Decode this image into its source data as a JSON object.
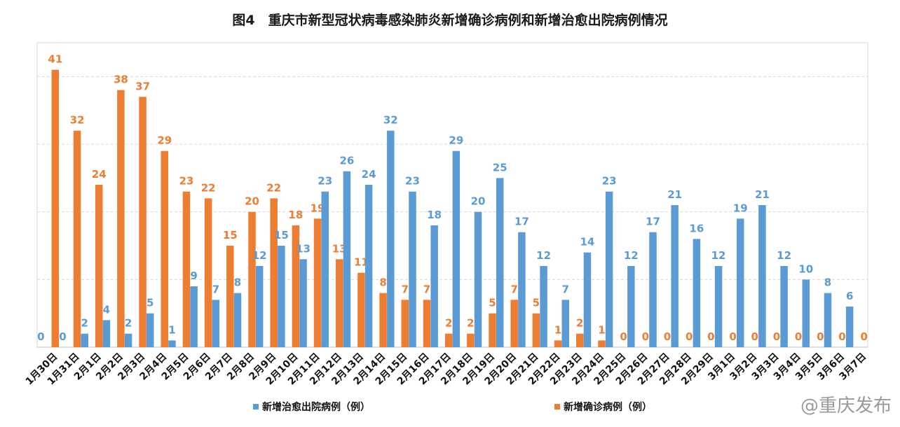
{
  "chart_data": {
    "type": "bar",
    "title": "图4　重庆市新型冠状病毒感染肺炎新增确诊病例和新增治愈出院病例情况",
    "categories": [
      "1月30日",
      "1月31日",
      "2月1日",
      "2月2日",
      "2月3日",
      "2月4日",
      "2月5日",
      "2月6日",
      "2月7日",
      "2月8日",
      "2月9日",
      "2月10日",
      "2月11日",
      "2月12日",
      "2月13日",
      "2月14日",
      "2月15日",
      "2月16日",
      "2月17日",
      "2月18日",
      "2月19日",
      "2月20日",
      "2月21日",
      "2月22日",
      "2月23日",
      "2月24日",
      "2月25日",
      "2月26日",
      "2月27日",
      "2月28日",
      "2月29日",
      "3月1日",
      "3月2日",
      "3月3日",
      "3月4日",
      "3月5日",
      "3月6日",
      "3月7日"
    ],
    "series": [
      {
        "name": "新增治愈出院病例（例）",
        "color": "#5b9bd5",
        "values": [
          0,
          0,
          2,
          4,
          2,
          5,
          1,
          9,
          7,
          8,
          12,
          15,
          13,
          23,
          26,
          24,
          32,
          23,
          18,
          29,
          20,
          25,
          17,
          12,
          7,
          14,
          23,
          12,
          17,
          21,
          16,
          12,
          19,
          21,
          12,
          10,
          8,
          6
        ]
      },
      {
        "name": "新增确诊病例（例）",
        "color": "#ed7d31",
        "values": [
          41,
          32,
          24,
          38,
          37,
          29,
          23,
          22,
          15,
          20,
          22,
          18,
          19,
          13,
          11,
          8,
          7,
          7,
          2,
          2,
          5,
          7,
          5,
          1,
          2,
          1,
          0,
          0,
          0,
          0,
          0,
          0,
          0,
          0,
          0,
          0,
          0,
          0
        ]
      }
    ],
    "ylim": [
      0,
      45
    ],
    "grid": true,
    "legend": "bottom",
    "data_labels": true
  },
  "watermark": "@重庆发布"
}
